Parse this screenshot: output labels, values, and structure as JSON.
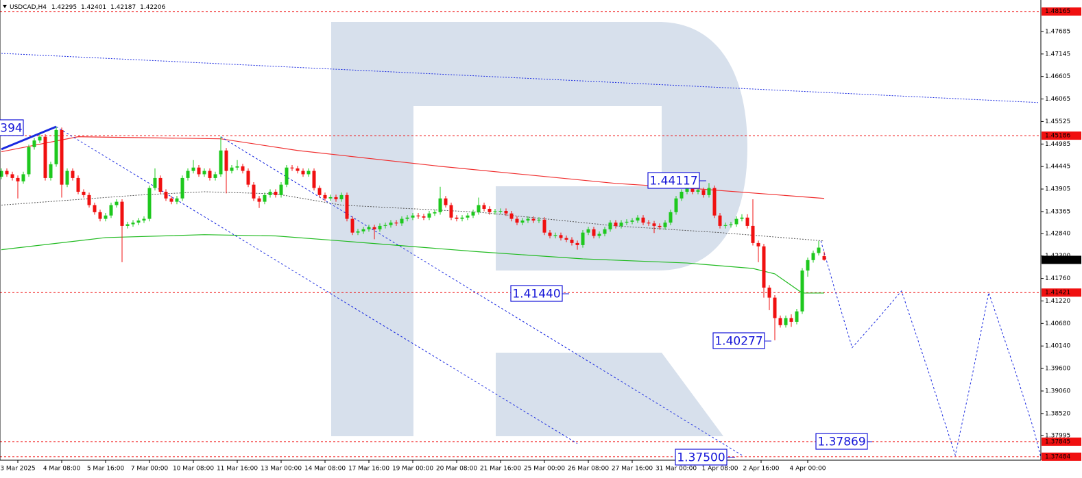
{
  "chart_data": {
    "type": "candlestick",
    "symbol": "USDCAD,H4",
    "up_color": "#1ec81e",
    "down_color": "#f01010",
    "xlim": [
      -0.25,
      189.5
    ],
    "ylim": [
      1.374,
      1.4844
    ],
    "open": [
      1.442,
      1.4434,
      1.4426,
      1.4417,
      1.4409,
      1.4426,
      1.4491,
      1.4507,
      1.4516,
      1.4417,
      1.445,
      1.4532,
      1.4401,
      1.4434,
      1.4417,
      1.4384,
      1.4376,
      1.4352,
      1.4335,
      1.4319,
      1.4327,
      1.4352,
      1.436,
      1.4302,
      1.4306,
      1.431,
      1.4315,
      1.4319,
      1.4393,
      1.4417,
      1.4384,
      1.4368,
      1.436,
      1.4368,
      1.4417,
      1.4434,
      1.4442,
      1.4426,
      1.4434,
      1.4417,
      1.4426,
      1.4483,
      1.4434,
      1.4442,
      1.4445,
      1.4434,
      1.4401,
      1.4368,
      1.436,
      1.4376,
      1.4384,
      1.4376,
      1.4401,
      1.4442,
      1.444,
      1.4434,
      1.4426,
      1.4434,
      1.4393,
      1.4376,
      1.4368,
      1.4371,
      1.4366,
      1.4376,
      1.4319,
      1.4286,
      1.4289,
      1.4294,
      1.4299,
      1.4294,
      1.4302,
      1.4304,
      1.431,
      1.4308,
      1.4319,
      1.4322,
      1.4327,
      1.4325,
      1.4322,
      1.4332,
      1.4335,
      1.4368,
      1.4352,
      1.4322,
      1.4319,
      1.4322,
      1.4327,
      1.4335,
      1.4352,
      1.4343,
      1.4335,
      1.4337,
      1.4338,
      1.4332,
      1.4319,
      1.431,
      1.4315,
      1.4319,
      1.4315,
      1.4317,
      1.4286,
      1.4278,
      1.428,
      1.4273,
      1.4269,
      1.4261,
      1.4256,
      1.4286,
      1.4294,
      1.4278,
      1.4283,
      1.4294,
      1.431,
      1.4302,
      1.431,
      1.4312,
      1.4315,
      1.4322,
      1.431,
      1.4308,
      1.4302,
      1.4299,
      1.431,
      1.4335,
      1.4368,
      1.4384,
      1.4393,
      1.4384,
      1.4388,
      1.4376,
      1.4393,
      1.4327,
      1.4302,
      1.4304,
      1.4306,
      1.4319,
      1.4322,
      1.4302,
      1.4261,
      1.4253,
      1.4154,
      1.413,
      1.4081,
      1.4064,
      1.4081,
      1.4072,
      1.4097,
      1.4195,
      1.422,
      1.4237,
      1.42295
    ],
    "high": [
      1.444,
      1.444,
      1.4432,
      1.4423,
      1.4432,
      1.4497,
      1.4513,
      1.4522,
      1.4522,
      1.4456,
      1.454,
      1.4538,
      1.444,
      1.444,
      1.4423,
      1.439,
      1.4382,
      1.4358,
      1.4341,
      1.4333,
      1.4358,
      1.4366,
      1.4366,
      1.4312,
      1.4316,
      1.4321,
      1.4325,
      1.4399,
      1.444,
      1.4423,
      1.439,
      1.4374,
      1.4374,
      1.4423,
      1.444,
      1.446,
      1.4448,
      1.444,
      1.444,
      1.4432,
      1.4516,
      1.4489,
      1.4448,
      1.446,
      1.4451,
      1.444,
      1.4407,
      1.4374,
      1.4382,
      1.439,
      1.439,
      1.4407,
      1.4448,
      1.4448,
      1.4446,
      1.444,
      1.444,
      1.444,
      1.4399,
      1.4382,
      1.4377,
      1.4377,
      1.4382,
      1.4382,
      1.4325,
      1.4295,
      1.43,
      1.4305,
      1.4305,
      1.4308,
      1.431,
      1.4316,
      1.4316,
      1.4325,
      1.4328,
      1.4333,
      1.4333,
      1.4331,
      1.4338,
      1.4341,
      1.4396,
      1.4374,
      1.4358,
      1.4328,
      1.4328,
      1.4333,
      1.4341,
      1.437,
      1.4358,
      1.4349,
      1.4343,
      1.4344,
      1.4344,
      1.4338,
      1.4325,
      1.4321,
      1.4325,
      1.4325,
      1.4323,
      1.4323,
      1.4292,
      1.4286,
      1.4286,
      1.4279,
      1.4275,
      1.4267,
      1.4292,
      1.43,
      1.43,
      1.4289,
      1.43,
      1.4316,
      1.4316,
      1.4316,
      1.4318,
      1.4321,
      1.4328,
      1.4328,
      1.4316,
      1.4314,
      1.4308,
      1.4316,
      1.4341,
      1.4374,
      1.439,
      1.4399,
      1.4399,
      1.44117,
      1.4394,
      1.4405,
      1.4399,
      1.4333,
      1.431,
      1.4312,
      1.4325,
      1.433,
      1.433,
      1.4366,
      1.4267,
      1.4259,
      1.416,
      1.4136,
      1.4087,
      1.4087,
      1.409,
      1.4103,
      1.4201,
      1.4226,
      1.4243,
      1.4266,
      1.42401
    ],
    "low": [
      1.4414,
      1.442,
      1.4411,
      1.4368,
      1.4403,
      1.442,
      1.4485,
      1.4501,
      1.4411,
      1.4411,
      1.4444,
      1.437,
      1.4395,
      1.4411,
      1.4378,
      1.437,
      1.4346,
      1.4329,
      1.4313,
      1.4313,
      1.4321,
      1.4346,
      1.4215,
      1.4296,
      1.43,
      1.4304,
      1.4309,
      1.4313,
      1.4387,
      1.4378,
      1.4362,
      1.4354,
      1.4354,
      1.4362,
      1.4411,
      1.4428,
      1.442,
      1.442,
      1.4411,
      1.4411,
      1.442,
      1.438,
      1.4428,
      1.4436,
      1.4428,
      1.4395,
      1.4362,
      1.4345,
      1.4354,
      1.437,
      1.437,
      1.437,
      1.4395,
      1.4434,
      1.4428,
      1.442,
      1.442,
      1.4387,
      1.437,
      1.4362,
      1.4362,
      1.436,
      1.436,
      1.4313,
      1.428,
      1.428,
      1.4283,
      1.4288,
      1.427,
      1.4288,
      1.4296,
      1.4298,
      1.4302,
      1.4302,
      1.4313,
      1.4316,
      1.4319,
      1.4316,
      1.4316,
      1.4326,
      1.4329,
      1.4346,
      1.4316,
      1.4313,
      1.4313,
      1.4316,
      1.4321,
      1.4329,
      1.4337,
      1.4329,
      1.4329,
      1.4331,
      1.4326,
      1.4313,
      1.4304,
      1.4304,
      1.4309,
      1.4309,
      1.4309,
      1.428,
      1.4272,
      1.4272,
      1.4267,
      1.4263,
      1.4255,
      1.4245,
      1.425,
      1.428,
      1.4272,
      1.4272,
      1.4277,
      1.4288,
      1.4296,
      1.4296,
      1.4304,
      1.4306,
      1.4309,
      1.4304,
      1.4302,
      1.4285,
      1.4293,
      1.4293,
      1.4304,
      1.4329,
      1.4362,
      1.4378,
      1.4378,
      1.4378,
      1.437,
      1.437,
      1.4321,
      1.4296,
      1.4296,
      1.4298,
      1.43,
      1.4313,
      1.4296,
      1.4255,
      1.4215,
      1.413,
      1.41,
      1.40277,
      1.4058,
      1.4058,
      1.406,
      1.4066,
      1.4091,
      1.418,
      1.4214,
      1.4231,
      1.42187
    ],
    "close": [
      1.4434,
      1.4426,
      1.4417,
      1.4409,
      1.4426,
      1.4491,
      1.4507,
      1.4516,
      1.4417,
      1.445,
      1.4532,
      1.4401,
      1.4434,
      1.4417,
      1.4384,
      1.4376,
      1.4352,
      1.4335,
      1.4319,
      1.4327,
      1.4352,
      1.436,
      1.4302,
      1.4306,
      1.431,
      1.4315,
      1.4319,
      1.4393,
      1.4417,
      1.4384,
      1.4368,
      1.436,
      1.4368,
      1.4417,
      1.4434,
      1.4442,
      1.4426,
      1.4434,
      1.4417,
      1.4426,
      1.4483,
      1.4434,
      1.4442,
      1.4445,
      1.4434,
      1.4401,
      1.4368,
      1.436,
      1.4376,
      1.4384,
      1.4376,
      1.4401,
      1.4442,
      1.444,
      1.4434,
      1.4426,
      1.4434,
      1.4393,
      1.4376,
      1.4368,
      1.4371,
      1.4366,
      1.4376,
      1.4319,
      1.4286,
      1.4289,
      1.4294,
      1.4299,
      1.4294,
      1.4302,
      1.4304,
      1.431,
      1.4308,
      1.4319,
      1.4322,
      1.4327,
      1.4325,
      1.4322,
      1.4332,
      1.4335,
      1.4368,
      1.4352,
      1.4322,
      1.4319,
      1.4322,
      1.4327,
      1.4335,
      1.4352,
      1.4343,
      1.4335,
      1.4337,
      1.4338,
      1.4332,
      1.4319,
      1.431,
      1.4315,
      1.4319,
      1.4315,
      1.4317,
      1.4286,
      1.4278,
      1.428,
      1.4273,
      1.4269,
      1.4261,
      1.4256,
      1.4286,
      1.4294,
      1.4278,
      1.4283,
      1.4294,
      1.431,
      1.4302,
      1.431,
      1.4312,
      1.4315,
      1.4322,
      1.431,
      1.4308,
      1.4302,
      1.4299,
      1.431,
      1.4335,
      1.4368,
      1.4384,
      1.4393,
      1.4384,
      1.4388,
      1.4376,
      1.4393,
      1.4327,
      1.4302,
      1.4304,
      1.4306,
      1.4319,
      1.4322,
      1.4302,
      1.4261,
      1.4253,
      1.4154,
      1.413,
      1.4081,
      1.4064,
      1.4081,
      1.4072,
      1.4097,
      1.4195,
      1.422,
      1.4237,
      1.425,
      1.42206
    ],
    "xticks": [
      {
        "value": 3,
        "label": "3 Mar 2025"
      },
      {
        "value": 11,
        "label": "4 Mar 08:00"
      },
      {
        "value": 19,
        "label": "5 Mar 16:00"
      },
      {
        "value": 27,
        "label": "7 Mar 00:00"
      },
      {
        "value": 35,
        "label": "10 Mar 08:00"
      },
      {
        "value": 43,
        "label": "11 Mar 16:00"
      },
      {
        "value": 51,
        "label": "13 Mar 00:00"
      },
      {
        "value": 59,
        "label": "14 Mar 08:00"
      },
      {
        "value": 67,
        "label": "17 Mar 16:00"
      },
      {
        "value": 75,
        "label": "19 Mar 00:00"
      },
      {
        "value": 83,
        "label": "20 Mar 08:00"
      },
      {
        "value": 91,
        "label": "21 Mar 16:00"
      },
      {
        "value": 99,
        "label": "25 Mar 00:00"
      },
      {
        "value": 107,
        "label": "26 Mar 08:00"
      },
      {
        "value": 115,
        "label": "27 Mar 16:00"
      },
      {
        "value": 123,
        "label": "31 Mar 00:00"
      },
      {
        "value": 131,
        "label": "1 Apr 08:00"
      },
      {
        "value": 138.5,
        "label": "2 Apr 16:00"
      },
      {
        "value": 147,
        "label": "4 Apr 00:00"
      }
    ],
    "yticks": [
      1.47685,
      1.47145,
      1.46605,
      1.46065,
      1.45525,
      1.44985,
      1.44445,
      1.43905,
      1.43365,
      {
        "value": 1.4284,
        "label": "1.42840"
      },
      {
        "value": 1.423,
        "label": "1.42300"
      },
      {
        "value": 1.4176,
        "label": "1.41760"
      },
      {
        "value": 1.4122,
        "label": "1.41220"
      },
      {
        "value": 1.4068,
        "label": "1.40680"
      },
      {
        "value": 1.4014,
        "label": "1.40140"
      },
      {
        "value": 1.396,
        "label": "1.39600"
      },
      {
        "value": 1.3906,
        "label": "1.39060"
      },
      {
        "value": 1.3852,
        "label": "1.38520"
      },
      1.37995
    ],
    "levels": [
      1.48165,
      1.45186,
      1.41421,
      1.37845,
      1.37484
    ],
    "level_color": "#f01010",
    "indicators": [
      {
        "color": "#f03030",
        "style": "solid",
        "x": [
          0,
          14,
          40,
          54,
          80,
          112,
          125,
          150
        ],
        "values": [
          1.448,
          1.4516,
          1.4511,
          1.4483,
          1.4445,
          1.4404,
          1.4393,
          1.4368
        ]
      },
      {
        "color": "#22bb22",
        "style": "solid",
        "x": [
          0,
          19,
          37,
          50,
          62,
          87,
          106,
          125,
          137,
          141,
          146,
          150
        ],
        "values": [
          1.4245,
          1.4274,
          1.4281,
          1.4278,
          1.4266,
          1.424,
          1.4223,
          1.4213,
          1.42,
          1.4187,
          1.4141,
          1.4141
        ]
      },
      {
        "color": "#555555",
        "style": "dotted",
        "x": [
          0,
          25,
          37,
          50,
          62,
          87,
          112,
          131,
          150
        ],
        "values": [
          1.4352,
          1.4376,
          1.4384,
          1.4379,
          1.4352,
          1.4335,
          1.4302,
          1.4286,
          1.4266
        ]
      },
      {
        "color": "#1a2ae0",
        "style": "dotted",
        "x": [
          0,
          189
        ],
        "values": [
          1.4716,
          1.4598
        ]
      },
      {
        "color": "#1a2ae0",
        "style": "thick",
        "x": [
          0,
          10
        ],
        "values": [
          1.4486,
          1.454
        ]
      },
      {
        "color": "#1a2ae0",
        "style": "dashed",
        "x": [
          10,
          105
        ],
        "values": [
          1.454,
          1.378
        ]
      },
      {
        "color": "#1a2ae0",
        "style": "dashed",
        "x": [
          40,
          135
        ],
        "values": [
          1.4516,
          1.3752
        ]
      },
      {
        "color": "#1a2ae0",
        "style": "dashed",
        "x": [
          149.4,
          152.1,
          155.1,
          159.75,
          164.1,
          169.1,
          173.9,
          177,
          180,
          184.75,
          188.1,
          189.5
        ],
        "values": [
          1.4266,
          1.4142,
          1.401,
          1.4079,
          1.4146,
          1.3949,
          1.3752,
          1.3944,
          1.4142,
          1.3957,
          1.3818,
          1.3747
        ]
      }
    ],
    "annotations": [
      "394",
      "1.44117",
      "1.41440",
      "1.40277",
      "1.37869",
      "1.37500"
    ]
  }
}
